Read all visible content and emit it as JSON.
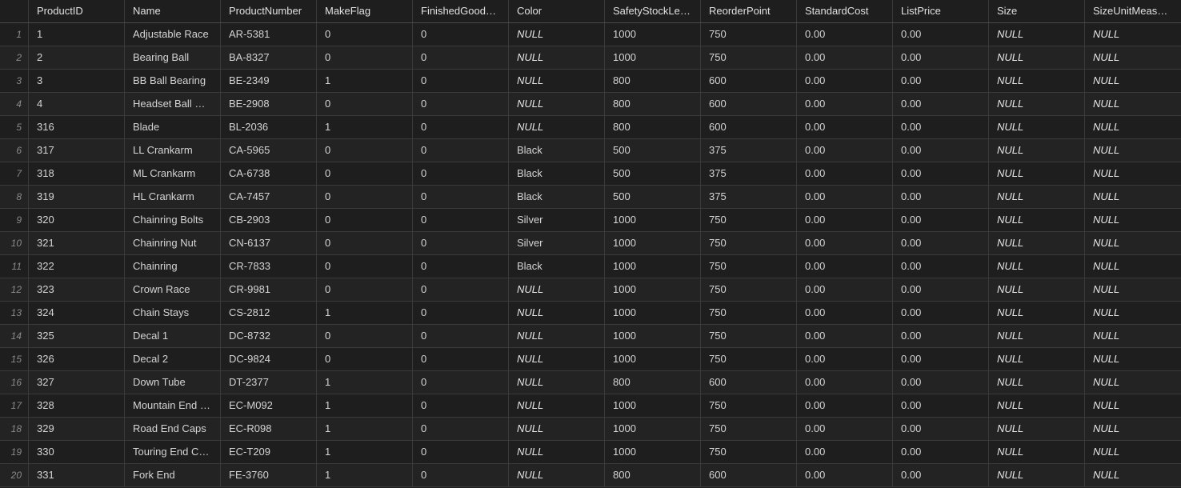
{
  "columns": [
    "ProductID",
    "Name",
    "ProductNumber",
    "MakeFlag",
    "FinishedGood…",
    "Color",
    "SafetyStockLe…",
    "ReorderPoint",
    "StandardCost",
    "ListPrice",
    "Size",
    "SizeUnitMeas…"
  ],
  "rows": [
    [
      "1",
      "Adjustable Race",
      "AR-5381",
      "0",
      "0",
      "NULL",
      "1000",
      "750",
      "0.00",
      "0.00",
      "NULL",
      "NULL"
    ],
    [
      "2",
      "Bearing Ball",
      "BA-8327",
      "0",
      "0",
      "NULL",
      "1000",
      "750",
      "0.00",
      "0.00",
      "NULL",
      "NULL"
    ],
    [
      "3",
      "BB Ball Bearing",
      "BE-2349",
      "1",
      "0",
      "NULL",
      "800",
      "600",
      "0.00",
      "0.00",
      "NULL",
      "NULL"
    ],
    [
      "4",
      "Headset Ball …",
      "BE-2908",
      "0",
      "0",
      "NULL",
      "800",
      "600",
      "0.00",
      "0.00",
      "NULL",
      "NULL"
    ],
    [
      "316",
      "Blade",
      "BL-2036",
      "1",
      "0",
      "NULL",
      "800",
      "600",
      "0.00",
      "0.00",
      "NULL",
      "NULL"
    ],
    [
      "317",
      "LL Crankarm",
      "CA-5965",
      "0",
      "0",
      "Black",
      "500",
      "375",
      "0.00",
      "0.00",
      "NULL",
      "NULL"
    ],
    [
      "318",
      "ML Crankarm",
      "CA-6738",
      "0",
      "0",
      "Black",
      "500",
      "375",
      "0.00",
      "0.00",
      "NULL",
      "NULL"
    ],
    [
      "319",
      "HL Crankarm",
      "CA-7457",
      "0",
      "0",
      "Black",
      "500",
      "375",
      "0.00",
      "0.00",
      "NULL",
      "NULL"
    ],
    [
      "320",
      "Chainring Bolts",
      "CB-2903",
      "0",
      "0",
      "Silver",
      "1000",
      "750",
      "0.00",
      "0.00",
      "NULL",
      "NULL"
    ],
    [
      "321",
      "Chainring Nut",
      "CN-6137",
      "0",
      "0",
      "Silver",
      "1000",
      "750",
      "0.00",
      "0.00",
      "NULL",
      "NULL"
    ],
    [
      "322",
      "Chainring",
      "CR-7833",
      "0",
      "0",
      "Black",
      "1000",
      "750",
      "0.00",
      "0.00",
      "NULL",
      "NULL"
    ],
    [
      "323",
      "Crown Race",
      "CR-9981",
      "0",
      "0",
      "NULL",
      "1000",
      "750",
      "0.00",
      "0.00",
      "NULL",
      "NULL"
    ],
    [
      "324",
      "Chain Stays",
      "CS-2812",
      "1",
      "0",
      "NULL",
      "1000",
      "750",
      "0.00",
      "0.00",
      "NULL",
      "NULL"
    ],
    [
      "325",
      "Decal 1",
      "DC-8732",
      "0",
      "0",
      "NULL",
      "1000",
      "750",
      "0.00",
      "0.00",
      "NULL",
      "NULL"
    ],
    [
      "326",
      "Decal 2",
      "DC-9824",
      "0",
      "0",
      "NULL",
      "1000",
      "750",
      "0.00",
      "0.00",
      "NULL",
      "NULL"
    ],
    [
      "327",
      "Down Tube",
      "DT-2377",
      "1",
      "0",
      "NULL",
      "800",
      "600",
      "0.00",
      "0.00",
      "NULL",
      "NULL"
    ],
    [
      "328",
      "Mountain End …",
      "EC-M092",
      "1",
      "0",
      "NULL",
      "1000",
      "750",
      "0.00",
      "0.00",
      "NULL",
      "NULL"
    ],
    [
      "329",
      "Road End Caps",
      "EC-R098",
      "1",
      "0",
      "NULL",
      "1000",
      "750",
      "0.00",
      "0.00",
      "NULL",
      "NULL"
    ],
    [
      "330",
      "Touring End C…",
      "EC-T209",
      "1",
      "0",
      "NULL",
      "1000",
      "750",
      "0.00",
      "0.00",
      "NULL",
      "NULL"
    ],
    [
      "331",
      "Fork End",
      "FE-3760",
      "1",
      "0",
      "NULL",
      "800",
      "600",
      "0.00",
      "0.00",
      "NULL",
      "NULL"
    ]
  ],
  "row_numbers": [
    "1",
    "2",
    "3",
    "4",
    "5",
    "6",
    "7",
    "8",
    "9",
    "10",
    "11",
    "12",
    "13",
    "14",
    "15",
    "16",
    "17",
    "18",
    "19",
    "20"
  ],
  "colors": {
    "background": "#1e1e1e",
    "row_alt": "#232323",
    "grid_line": "#3a3a3a",
    "text": "#d4d4d4",
    "row_number": "#8a8a8a"
  }
}
